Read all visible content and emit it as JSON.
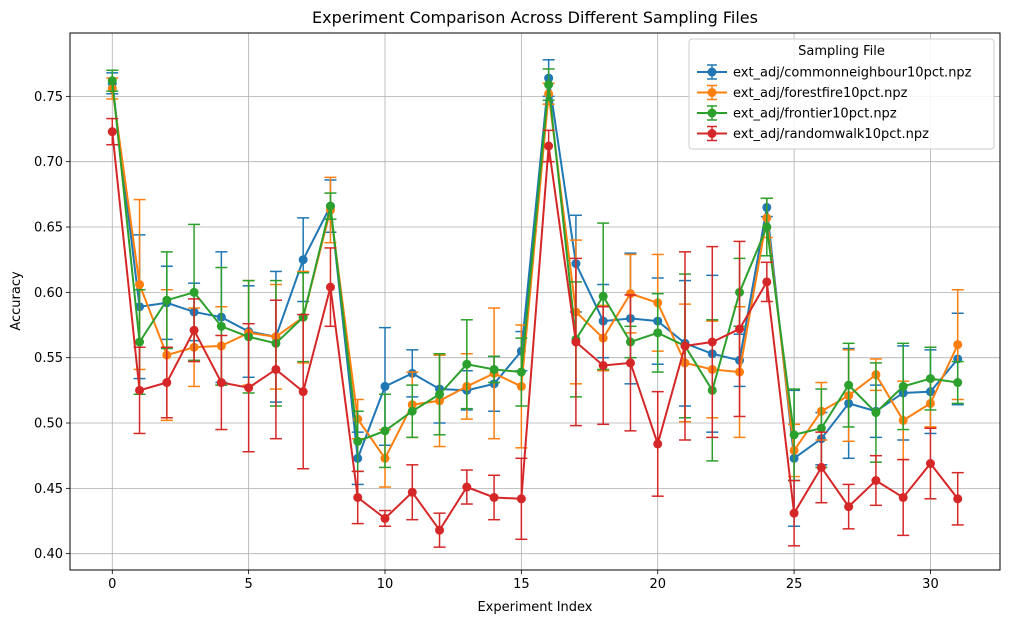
{
  "chart_data": {
    "type": "line",
    "title": "Experiment Comparison Across Different Sampling Files",
    "xlabel": "Experiment Index",
    "ylabel": "Accuracy",
    "xlim": [
      -1.55,
      32.55
    ],
    "ylim": [
      0.3875,
      0.7985
    ],
    "xticks": [
      0,
      5,
      10,
      15,
      20,
      25,
      30
    ],
    "yticks": [
      0.4,
      0.45,
      0.5,
      0.55,
      0.6,
      0.65,
      0.7,
      0.75
    ],
    "ytick_labels": [
      "0.40",
      "0.45",
      "0.50",
      "0.55",
      "0.60",
      "0.65",
      "0.70",
      "0.75"
    ],
    "grid": true,
    "legend_title": "Sampling File",
    "legend_position": "top-right",
    "x": [
      0,
      1,
      2,
      3,
      4,
      5,
      6,
      7,
      8,
      9,
      10,
      11,
      12,
      13,
      14,
      15,
      16,
      17,
      18,
      19,
      20,
      21,
      22,
      23,
      24,
      25,
      26,
      27,
      28,
      29,
      30,
      31
    ],
    "series": [
      {
        "name": "ext_adj/commonneighbour10pct.npz",
        "color": "#1f77b4",
        "values": [
          0.76,
          0.589,
          0.592,
          0.585,
          0.581,
          0.57,
          0.566,
          0.625,
          0.666,
          0.473,
          0.528,
          0.538,
          0.526,
          0.525,
          0.53,
          0.555,
          0.764,
          0.622,
          0.578,
          0.58,
          0.578,
          0.561,
          0.553,
          0.548,
          0.665,
          0.473,
          0.488,
          0.515,
          0.509,
          0.523,
          0.524,
          0.549
        ],
        "errors": [
          0.008,
          0.055,
          0.028,
          0.022,
          0.05,
          0.035,
          0.05,
          0.032,
          0.02,
          0.02,
          0.045,
          0.018,
          0.026,
          0.015,
          0.021,
          0.015,
          0.014,
          0.037,
          0.028,
          0.05,
          0.033,
          0.048,
          0.06,
          0.02,
          0.007,
          0.052,
          0.02,
          0.042,
          0.02,
          0.036,
          0.032,
          0.035
        ]
      },
      {
        "name": "ext_adj/forestfire10pct.npz",
        "color": "#ff7f0e",
        "values": [
          0.756,
          0.606,
          0.552,
          0.558,
          0.559,
          0.569,
          0.566,
          0.581,
          0.663,
          0.503,
          0.473,
          0.514,
          0.517,
          0.528,
          0.538,
          0.528,
          0.752,
          0.585,
          0.565,
          0.599,
          0.592,
          0.546,
          0.541,
          0.539,
          0.657,
          0.479,
          0.509,
          0.521,
          0.537,
          0.502,
          0.515,
          0.56
        ],
        "errors": [
          0.008,
          0.065,
          0.05,
          0.03,
          0.03,
          0.04,
          0.04,
          0.035,
          0.025,
          0.015,
          0.022,
          0.025,
          0.035,
          0.025,
          0.05,
          0.047,
          0.008,
          0.055,
          0.025,
          0.03,
          0.037,
          0.045,
          0.037,
          0.05,
          0.015,
          0.02,
          0.022,
          0.035,
          0.012,
          0.03,
          0.018,
          0.042
        ]
      },
      {
        "name": "ext_adj/frontier10pct.npz",
        "color": "#2ca02c",
        "values": [
          0.762,
          0.562,
          0.594,
          0.6,
          0.574,
          0.566,
          0.561,
          0.581,
          0.666,
          0.486,
          0.494,
          0.509,
          0.522,
          0.545,
          0.541,
          0.539,
          0.759,
          0.564,
          0.597,
          0.562,
          0.569,
          0.559,
          0.525,
          0.6,
          0.65,
          0.491,
          0.496,
          0.529,
          0.508,
          0.528,
          0.534,
          0.531
        ],
        "errors": [
          0.008,
          0.04,
          0.037,
          0.052,
          0.045,
          0.043,
          0.048,
          0.034,
          0.01,
          0.023,
          0.028,
          0.02,
          0.031,
          0.034,
          0.01,
          0.026,
          0.012,
          0.044,
          0.056,
          0.012,
          0.03,
          0.055,
          0.054,
          0.026,
          0.022,
          0.035,
          0.03,
          0.032,
          0.038,
          0.033,
          0.024,
          0.016
        ]
      },
      {
        "name": "ext_adj/randomwalk10pct.npz",
        "color": "#d62728",
        "values": [
          0.723,
          0.525,
          0.531,
          0.571,
          0.531,
          0.527,
          0.541,
          0.524,
          0.604,
          0.443,
          0.427,
          0.447,
          0.418,
          0.451,
          0.443,
          0.442,
          0.712,
          0.562,
          0.544,
          0.546,
          0.484,
          0.559,
          0.562,
          0.572,
          0.608,
          0.431,
          0.466,
          0.436,
          0.456,
          0.443,
          0.469,
          0.442
        ],
        "errors": [
          0.01,
          0.033,
          0.027,
          0.024,
          0.036,
          0.049,
          0.053,
          0.059,
          0.03,
          0.02,
          0.006,
          0.021,
          0.013,
          0.013,
          0.017,
          0.031,
          0.012,
          0.064,
          0.045,
          0.052,
          0.04,
          0.072,
          0.073,
          0.067,
          0.015,
          0.025,
          0.027,
          0.017,
          0.019,
          0.029,
          0.027,
          0.02
        ]
      }
    ]
  }
}
